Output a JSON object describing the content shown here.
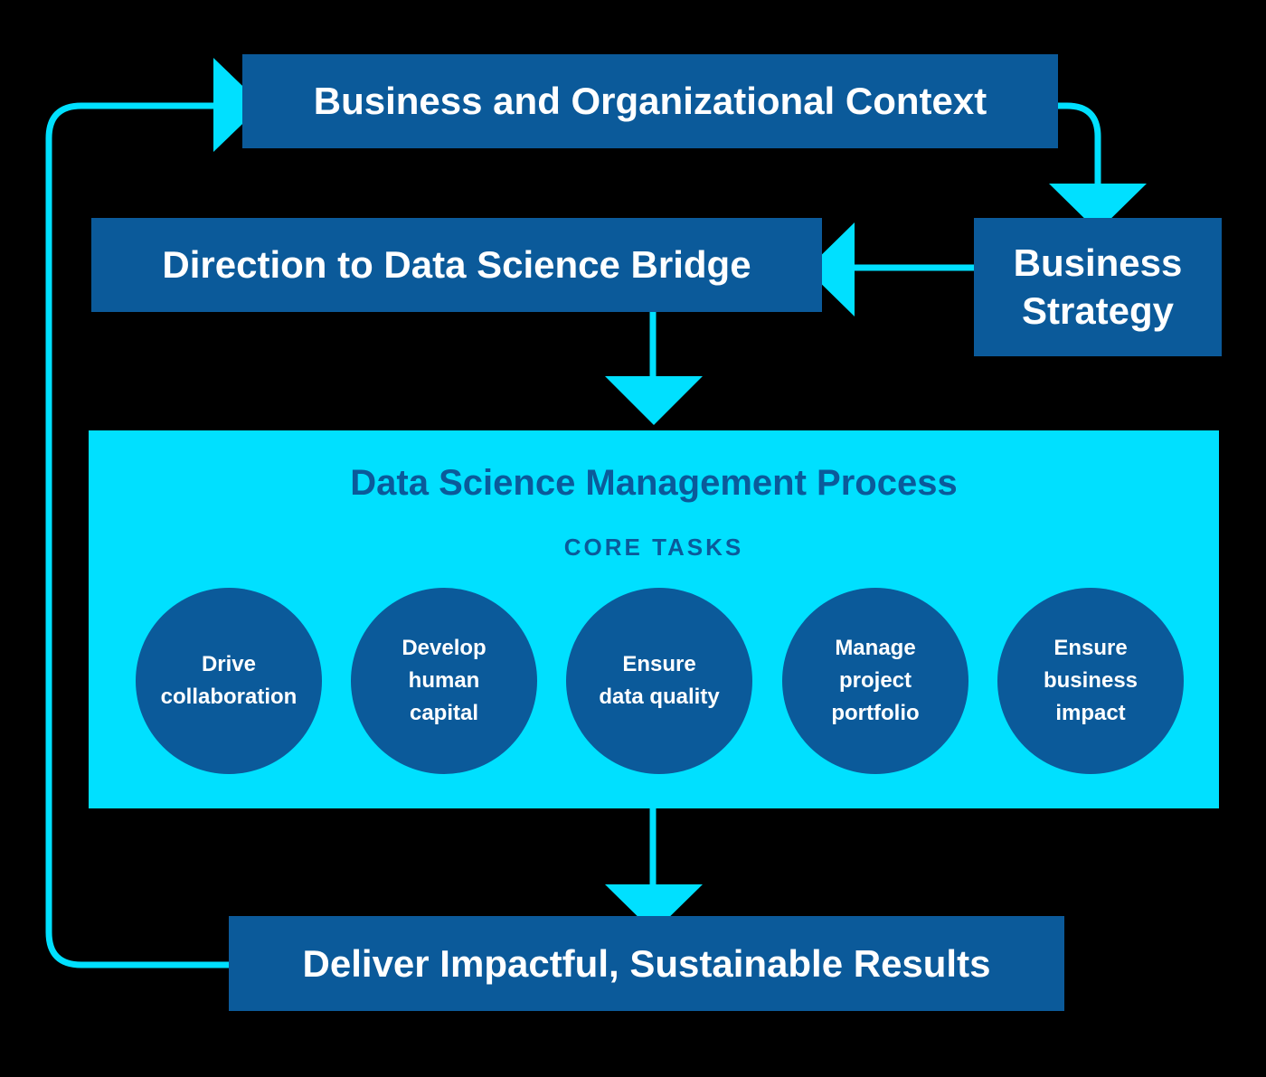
{
  "diagram": {
    "context_box": {
      "label": "Business and Organizational Context"
    },
    "strategy_box": {
      "lines": [
        "Business",
        "Strategy"
      ]
    },
    "direction_box": {
      "label": "Direction to Data Science Bridge"
    },
    "process": {
      "title": "Data Science Management Process",
      "subtitle": "CORE TASKS",
      "tasks": [
        {
          "lines": [
            "Drive",
            "collaboration"
          ]
        },
        {
          "lines": [
            "Develop",
            "human",
            "capital"
          ]
        },
        {
          "lines": [
            "Ensure",
            "data quality"
          ]
        },
        {
          "lines": [
            "Manage",
            "project",
            "portfolio"
          ]
        },
        {
          "lines": [
            "Ensure",
            "business",
            "impact"
          ]
        }
      ]
    },
    "results_box": {
      "label": "Deliver Impactful, Sustainable Results"
    }
  },
  "colors": {
    "background": "#000000",
    "box_fill": "#0b5a9a",
    "accent_cyan": "#00e0ff",
    "text_on_dark": "#ffffff",
    "text_on_cyan": "#0b5a9a"
  }
}
